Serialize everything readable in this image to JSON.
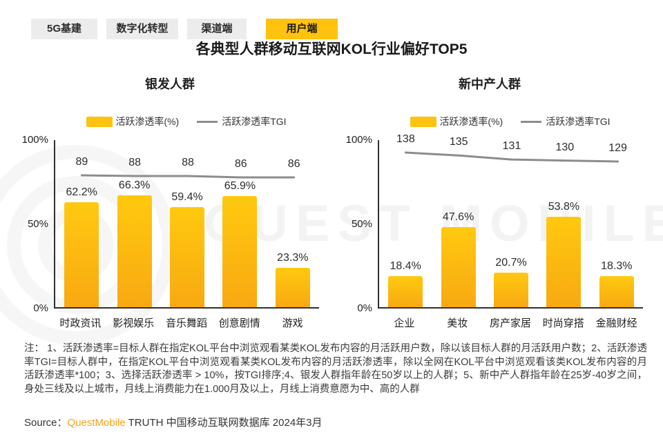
{
  "tabs": [
    {
      "label": "5G基建",
      "active": false
    },
    {
      "label": "数字化转型",
      "active": false
    },
    {
      "label": "渠道端",
      "active": false
    },
    {
      "label": "用户端",
      "active": true
    }
  ],
  "title": "各典型人群移动互联网KOL行业偏好TOP5",
  "watermark": "QUEST MOBILE",
  "colors": {
    "accent_yellow": "#FFC20E",
    "bar_gradient_top": "#FFC90F",
    "bar_gradient_bottom": "#F8A912",
    "tgi_line_gray": "#8C8C8C",
    "source_brand_orange": "#F7A11A"
  },
  "chart_data": [
    {
      "type": "bar+line",
      "title": "银发人群",
      "categories": [
        "时政资讯",
        "影视娱乐",
        "音乐舞蹈",
        "创意剧情",
        "游戏"
      ],
      "series": [
        {
          "name": "活跃渗透率(%)",
          "chart": "bar",
          "values": [
            62.2,
            66.3,
            59.4,
            65.9,
            23.3
          ],
          "labels": [
            "62.2%",
            "66.3%",
            "59.4%",
            "65.9%",
            "23.3%"
          ]
        },
        {
          "name": "活跃渗透率TGI",
          "chart": "line",
          "values": [
            89,
            88,
            88,
            86,
            86
          ]
        }
      ],
      "ylim": [
        0,
        100
      ],
      "y_ticks": {
        "top": "100%",
        "mid": "50%",
        "bottom": "0%"
      },
      "legend_position": "top",
      "grid": false
    },
    {
      "type": "bar+line",
      "title": "新中产人群",
      "categories": [
        "企业",
        "美妆",
        "房产家居",
        "时尚穿搭",
        "金融财经"
      ],
      "series": [
        {
          "name": "活跃渗透率(%)",
          "chart": "bar",
          "values": [
            18.4,
            47.6,
            20.7,
            53.8,
            18.3
          ],
          "labels": [
            "18.4%",
            "47.6%",
            "20.7%",
            "53.8%",
            "18.3%"
          ]
        },
        {
          "name": "活跃渗透率TGI",
          "chart": "line",
          "values": [
            138,
            135,
            131,
            130,
            129
          ]
        }
      ],
      "ylim": [
        0,
        100
      ],
      "y_ticks": {
        "top": "100%",
        "mid": "50%",
        "bottom": "0%"
      },
      "legend_position": "top",
      "grid": false
    }
  ],
  "note": "注： 1、活跃渗透率=目标人群在指定KOL平台中浏览观看某类KOL发布内容的月活跃用户数，除以该目标人群的月活跃用户数；2、活跃渗透率TGI=目标人群中，在指定KOL平台中浏览观看某类KOL发布内容的月活跃渗透率，除以全网在KOL平台中浏览观看该类KOL发布内容的月活跃渗透率*100；3、选择活跃渗透率 > 10%，按TGI排序;4、银发人群指年龄在50岁以上的人群；5、新中产人群指年龄在25岁-40岁之间，身处三线及以上城市，月线上消费能力在1.000月及以上，月线上消费意愿为中、高的人群",
  "source": {
    "prefix": "Source：",
    "brand": "QuestMobile",
    "suffix": " TRUTH 中国移动互联网数据库 2024年3月"
  }
}
